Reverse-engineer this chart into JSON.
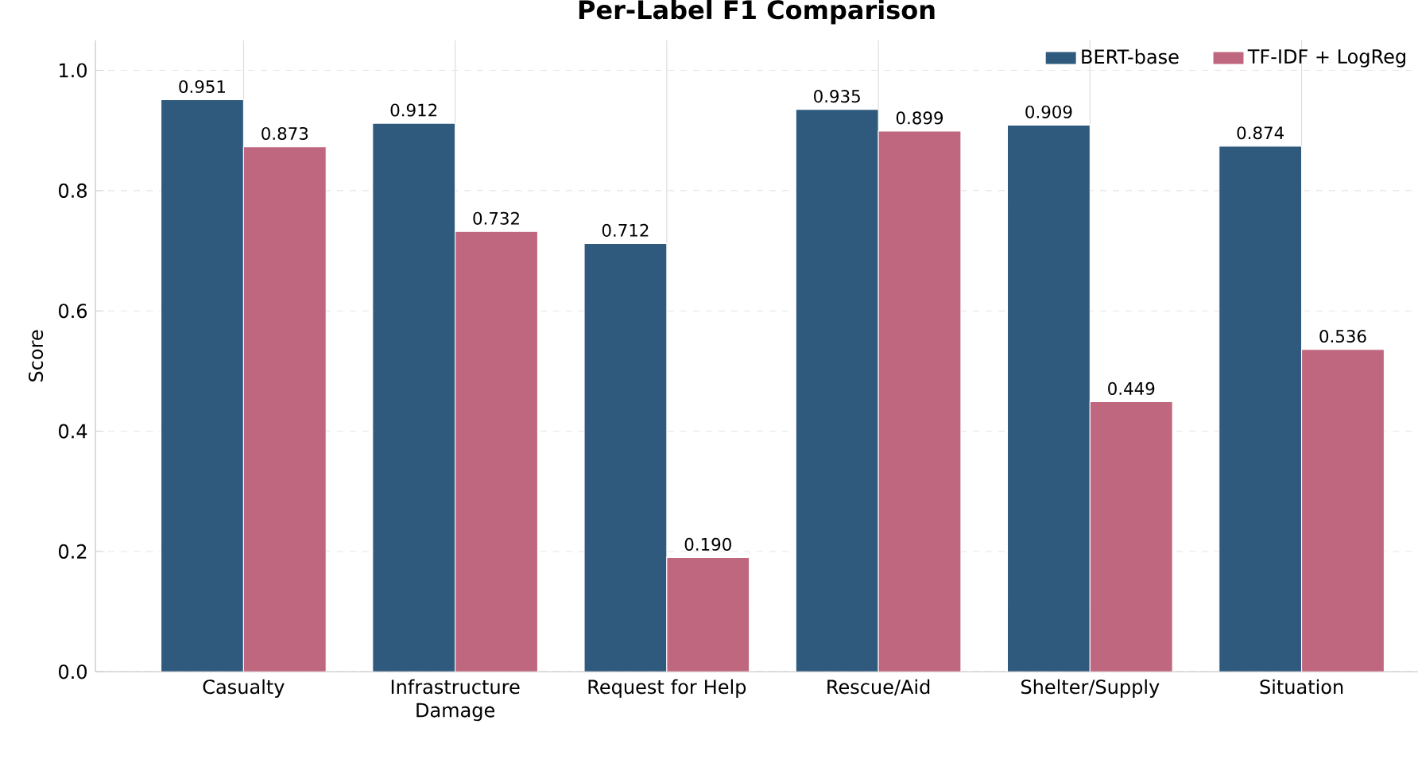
{
  "chart_data": {
    "type": "bar",
    "title": "Per-Label F1 Comparison",
    "ylabel": "Score",
    "categories": [
      "Casualty",
      "Infrastructure Damage",
      "Request for Help",
      "Rescue/Aid",
      "Shelter/Supply",
      "Situation"
    ],
    "series": [
      {
        "name": "BERT-base",
        "color": "#2f5a7e",
        "values": [
          0.951,
          0.912,
          0.712,
          0.935,
          0.909,
          0.874
        ],
        "value_labels": [
          "0.951",
          "0.912",
          "0.712",
          "0.935",
          "0.909",
          "0.874"
        ]
      },
      {
        "name": "TF-IDF + LogReg",
        "color": "#bf677e",
        "values": [
          0.873,
          0.732,
          0.19,
          0.899,
          0.449,
          0.536
        ],
        "value_labels": [
          "0.873",
          "0.732",
          "0.190",
          "0.899",
          "0.449",
          "0.536"
        ]
      }
    ],
    "ylim": [
      0,
      1.05
    ],
    "yticks": [
      {
        "value": 0,
        "label": "0.0"
      },
      {
        "value": 0.2,
        "label": "0.2"
      },
      {
        "value": 0.4,
        "label": "0.4"
      },
      {
        "value": 0.6,
        "label": "0.6"
      },
      {
        "value": 0.8,
        "label": "0.8"
      },
      {
        "value": 1.0,
        "label": "1.0"
      }
    ],
    "grid": true,
    "legend": "top right"
  }
}
